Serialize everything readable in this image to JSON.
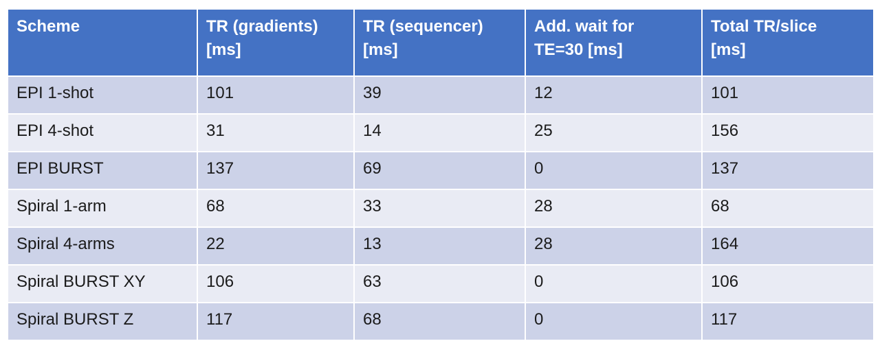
{
  "colors": {
    "header_bg": "#4472C4",
    "header_text": "#FFFFFF",
    "row_odd_bg": "#CCD2E8",
    "row_even_bg": "#E9EBF4",
    "body_text": "#1B1B1B",
    "grid": "#FFFFFF"
  },
  "table": {
    "header": [
      {
        "label": "Scheme",
        "lines": [
          "Scheme"
        ]
      },
      {
        "label": "TR (gradients) [ms]",
        "lines": [
          "TR (gradients)",
          "[ms]"
        ]
      },
      {
        "label": "TR (sequencer) [ms]",
        "lines": [
          "TR (sequencer)",
          "[ms]"
        ]
      },
      {
        "label": "Add. wait for TE=30 [ms]",
        "lines": [
          "Add. wait for",
          "TE=30 [ms]"
        ]
      },
      {
        "label": "Total TR/slice [ms]",
        "lines": [
          "Total TR/slice",
          "[ms]"
        ]
      }
    ],
    "rows": [
      {
        "cells": [
          "EPI 1-shot",
          "101",
          "39",
          "12",
          "101"
        ]
      },
      {
        "cells": [
          "EPI 4-shot",
          "31",
          "14",
          "25",
          "156"
        ]
      },
      {
        "cells": [
          "EPI BURST",
          "137",
          "69",
          "0",
          "137"
        ]
      },
      {
        "cells": [
          "Spiral 1-arm",
          "68",
          "33",
          "28",
          "68"
        ]
      },
      {
        "cells": [
          "Spiral 4-arms",
          "22",
          "13",
          "28",
          "164"
        ]
      },
      {
        "cells": [
          "Spiral BURST XY",
          "106",
          "63",
          "0",
          "106"
        ]
      },
      {
        "cells": [
          "Spiral BURST Z",
          "117",
          "68",
          "0",
          "117"
        ]
      }
    ]
  },
  "chart_data": {
    "type": "table",
    "columns": [
      "Scheme",
      "TR (gradients) [ms]",
      "TR (sequencer) [ms]",
      "Add. wait for TE=30 [ms]",
      "Total TR/slice [ms]"
    ],
    "rows": [
      [
        "EPI 1-shot",
        101,
        39,
        12,
        101
      ],
      [
        "EPI 4-shot",
        31,
        14,
        25,
        156
      ],
      [
        "EPI BURST",
        137,
        69,
        0,
        137
      ],
      [
        "Spiral 1-arm",
        68,
        33,
        28,
        68
      ],
      [
        "Spiral 4-arms",
        22,
        13,
        28,
        164
      ],
      [
        "Spiral BURST XY",
        106,
        63,
        0,
        106
      ],
      [
        "Spiral BURST Z",
        117,
        68,
        0,
        117
      ]
    ],
    "title": "",
    "layout": {
      "header_fill": "#4472C4",
      "banded_rows": true,
      "grid": "white 2px separators"
    }
  }
}
